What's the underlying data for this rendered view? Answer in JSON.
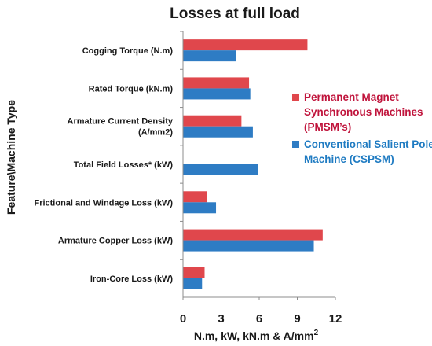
{
  "chart_data": {
    "type": "bar",
    "orientation": "horizontal",
    "title": "Losses at full load",
    "xlabel": "N.m, kW, kN.m & A/mm",
    "xlabel_sup": "2",
    "ylabel": "Feature\\Machine Type",
    "xlim": [
      0,
      12
    ],
    "xticks": [
      "0",
      "3",
      "6",
      "9",
      "12"
    ],
    "grid": false,
    "legend_position": "right",
    "categories": [
      [
        "Cogging Torque (N.m)"
      ],
      [
        "Rated Torque (kN.m)"
      ],
      [
        "Armature Current Density",
        "(A/mm2)"
      ],
      [
        "Total Field Losses* (kW)"
      ],
      [
        "Frictional and Windage Loss (kW)"
      ],
      [
        "Armature Copper Loss (kW)"
      ],
      [
        "Iron-Core Loss (kW)"
      ]
    ],
    "series": [
      {
        "name": [
          "Permanent Magnet",
          "Synchronous Machines",
          "(PMSM’s)"
        ],
        "color": "#e0474c",
        "text_color": "#c0143c",
        "values": [
          9.8,
          5.2,
          4.6,
          0,
          1.9,
          11.0,
          1.7
        ]
      },
      {
        "name": [
          "Conventional Salient Pole",
          "Machine (CSPSM)"
        ],
        "color": "#2e7cc4",
        "text_color": "#1f7bc2",
        "values": [
          4.2,
          5.3,
          5.5,
          5.9,
          2.6,
          10.3,
          1.5
        ]
      }
    ]
  }
}
